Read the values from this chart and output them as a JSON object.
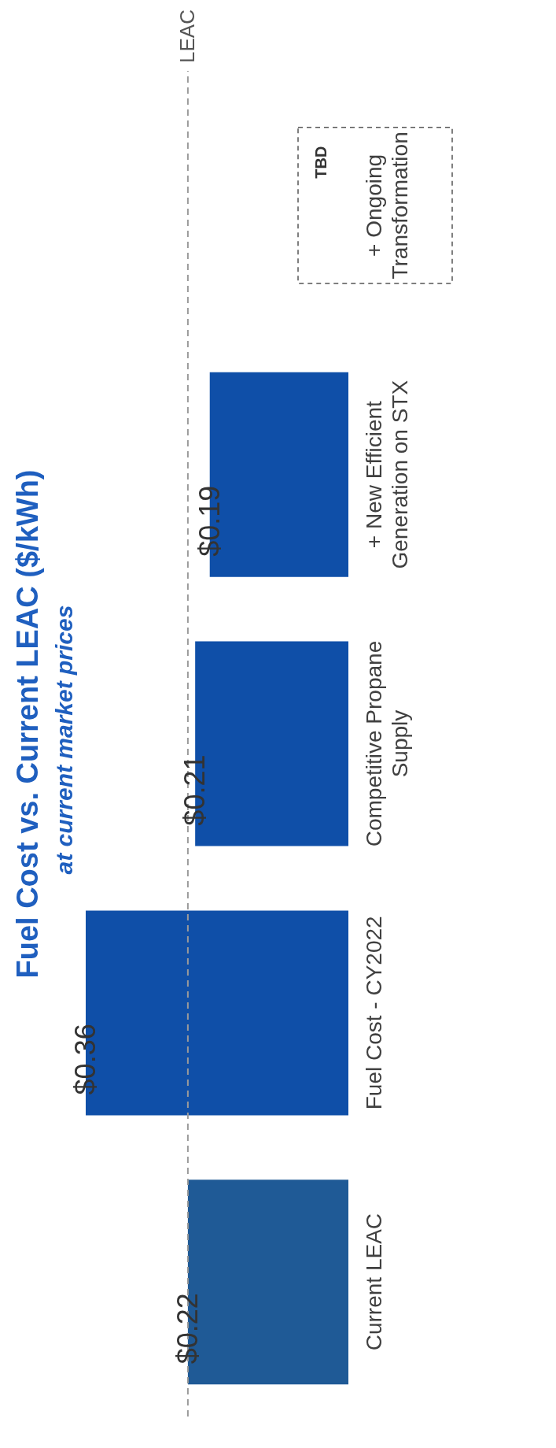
{
  "chart_data": {
    "type": "bar",
    "orientation": "horizontal",
    "title": "Fuel Cost vs. Current LEAC ($/kWh)",
    "subtitle": "at current market prices",
    "categories": [
      "+ Ongoing Transformation",
      "+ New Efficient Generation on STX",
      "Competitive Propane Supply",
      "Fuel Cost - CY2022",
      "Current LEAC"
    ],
    "values": [
      null,
      0.19,
      0.21,
      0.36,
      0.22
    ],
    "colors": [
      "#0f4fa8",
      "#0f4fa8",
      "#0f4fa8",
      "#0f4fa8",
      "#1f5a96"
    ],
    "value_labels": [
      null,
      "$0.19",
      "$0.21",
      "$0.36",
      "$0.22"
    ],
    "ref_lines": [
      {
        "axis": "x",
        "value": 0.22,
        "label": "LEAC",
        "color": "#9a9a9a",
        "line_style": "dashed"
      }
    ],
    "annotations": [
      "TBD"
    ],
    "grid": false,
    "legend": false
  }
}
